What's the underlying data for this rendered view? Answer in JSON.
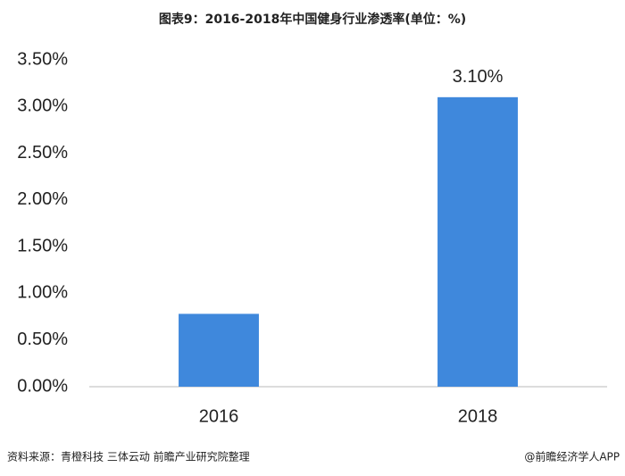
{
  "chart_data": {
    "type": "bar",
    "title": "图表9：2016-2018年中国健身行业渗透率(单位：%)",
    "categories": [
      "2016",
      "2018"
    ],
    "values": [
      0.78,
      3.1
    ],
    "value_labels": [
      null,
      "3.10%"
    ],
    "color": "#3f88dc",
    "ylim": [
      0,
      3.5
    ],
    "yticks": [
      {
        "value": 0,
        "label": "0.00%"
      },
      {
        "value": 0.5,
        "label": "0.50%"
      },
      {
        "value": 1,
        "label": "1.00%"
      },
      {
        "value": 1.5,
        "label": "1.50%"
      },
      {
        "value": 2,
        "label": "2.00%"
      },
      {
        "value": 2.5,
        "label": "2.50%"
      },
      {
        "value": 3,
        "label": "3.00%"
      },
      {
        "value": 3.5,
        "label": "3.50%"
      }
    ],
    "grid": false,
    "source": "资料来源：青橙科技 三体云动 前瞻产业研究院整理",
    "credit": "@前瞻经济学人APP"
  }
}
